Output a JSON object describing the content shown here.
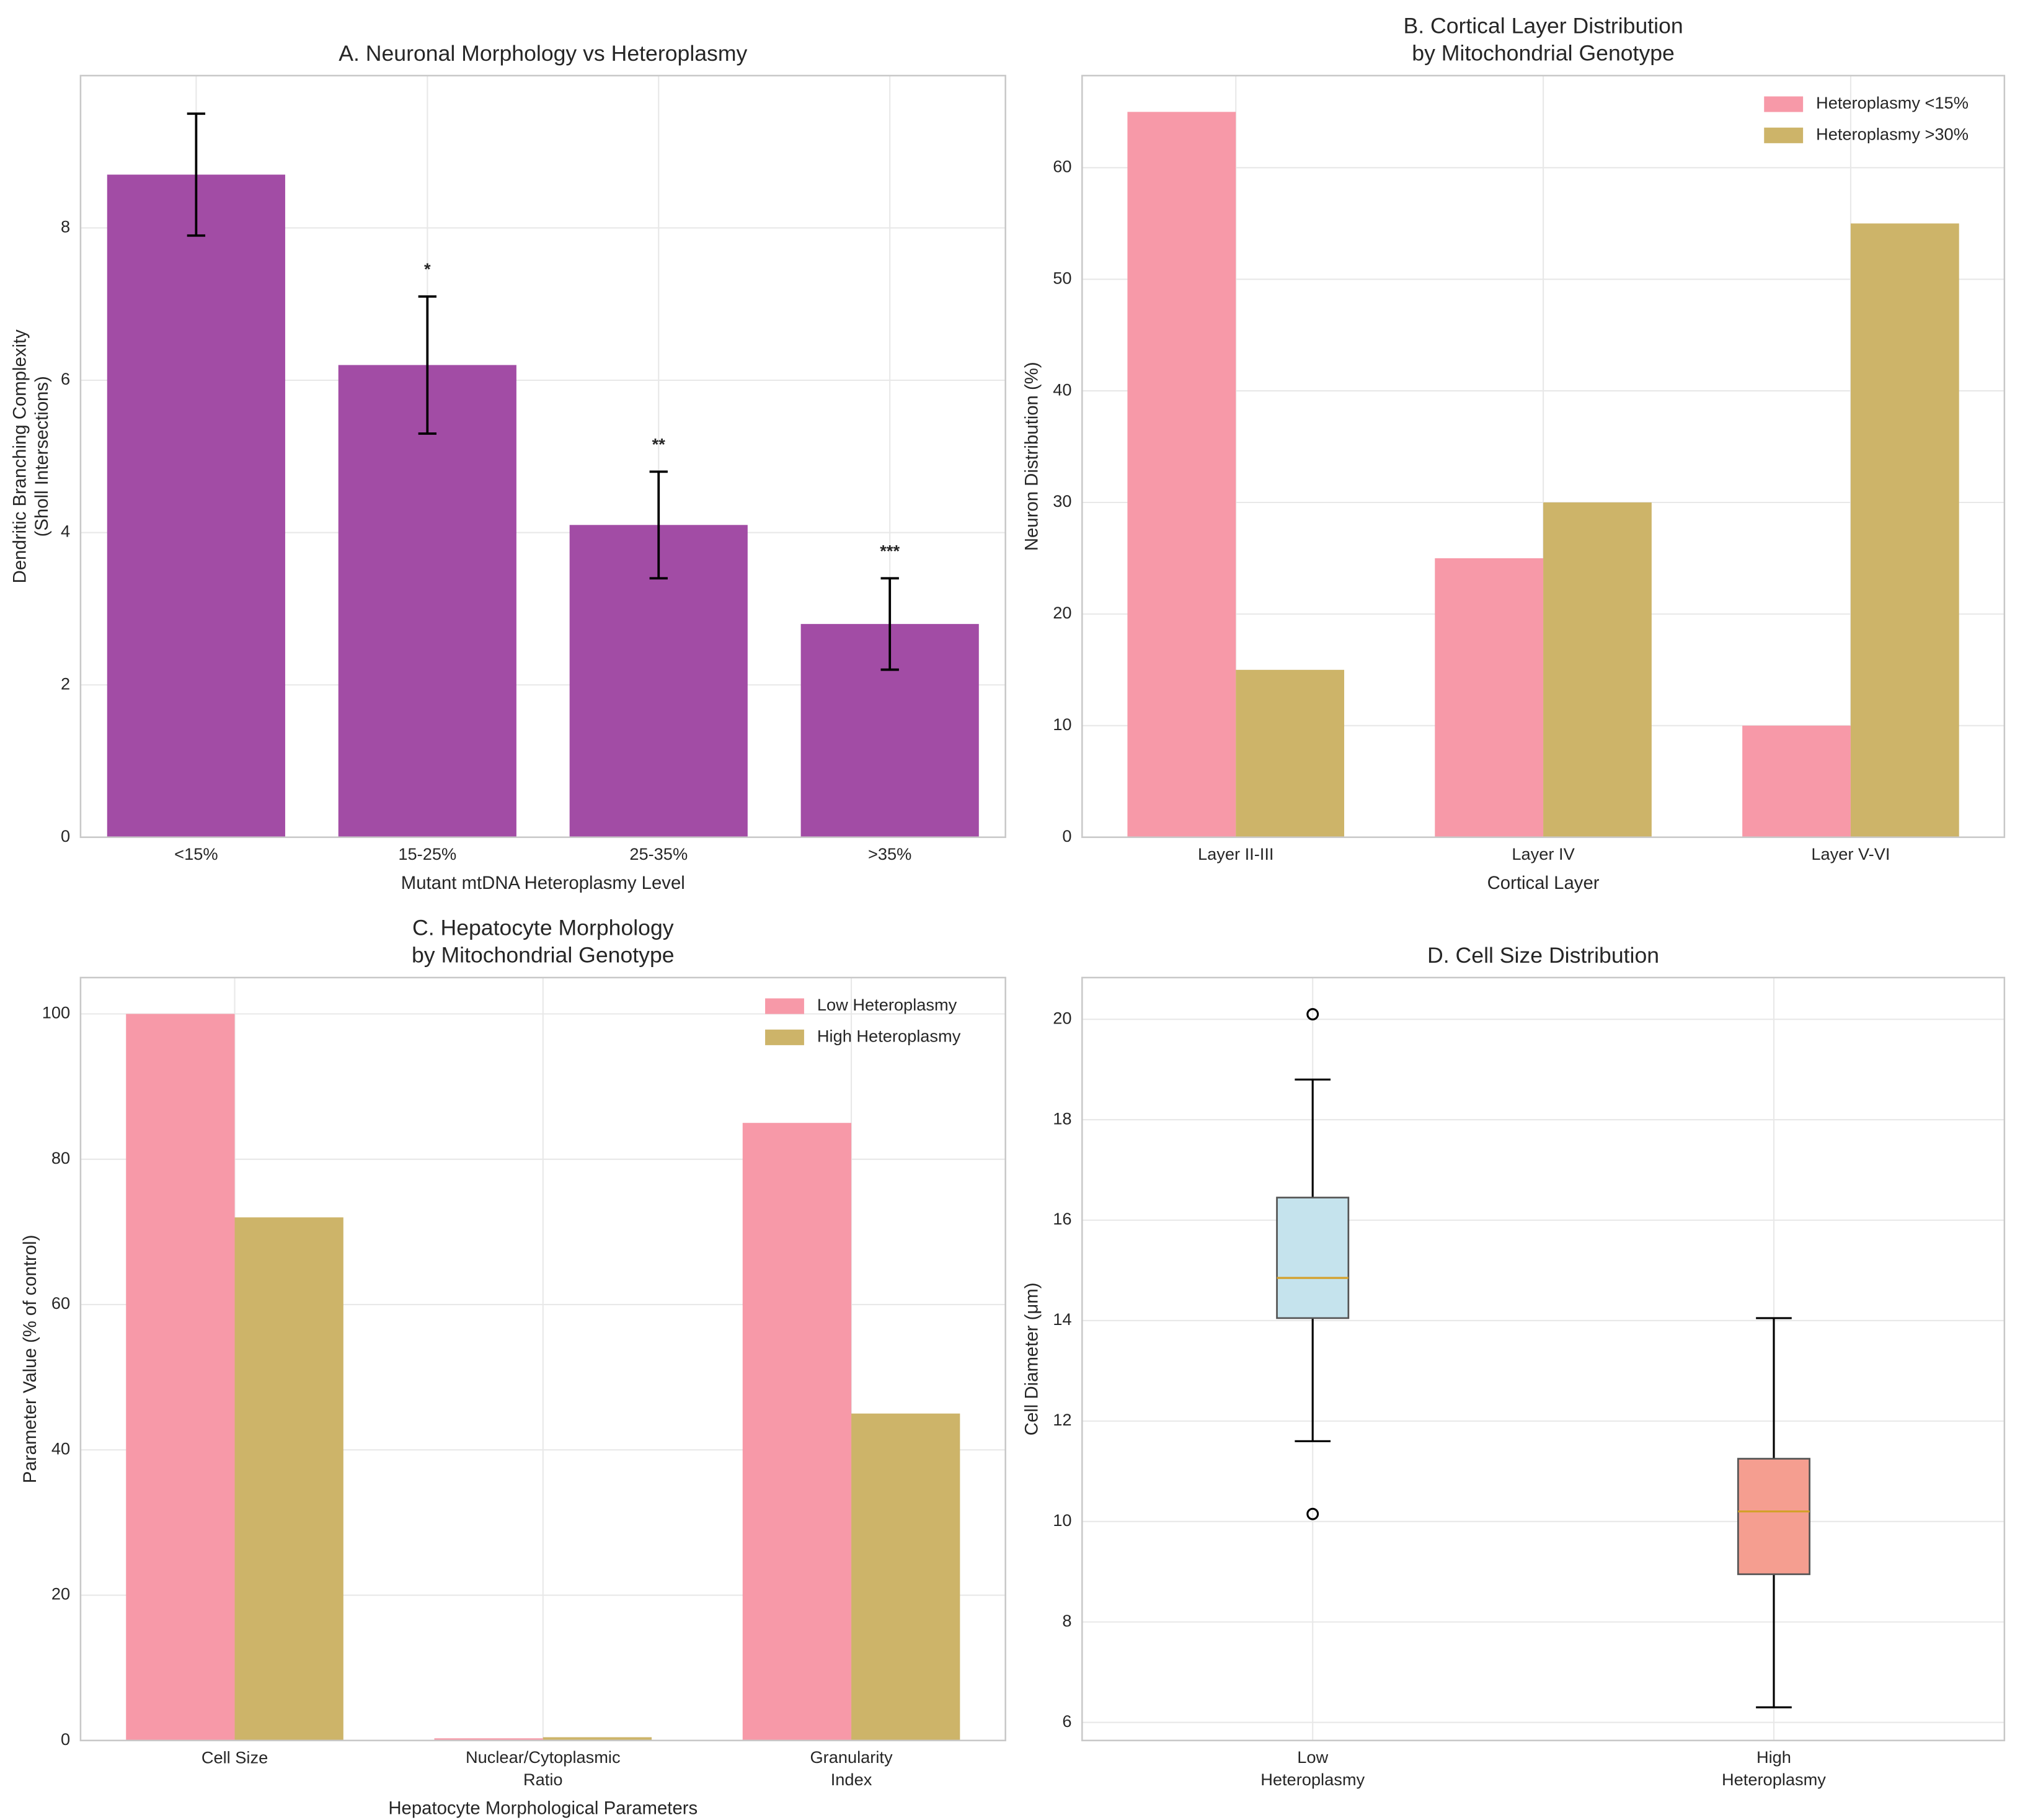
{
  "chart_data": [
    {
      "type": "bar",
      "title": "A. Neuronal Morphology vs Heteroplasmy",
      "xlabel": "Mutant mtDNA Heteroplasmy Level",
      "ylabel": "Dendritic Branching Complexity\n(Sholl Intersections)",
      "categories": [
        "<15%",
        "15-25%",
        "25-35%",
        ">35%"
      ],
      "values": [
        8.7,
        6.2,
        4.1,
        2.8
      ],
      "errors": [
        0.8,
        0.9,
        0.7,
        0.6
      ],
      "significance": [
        null,
        "*",
        "**",
        "***"
      ],
      "color": "#a24ca5",
      "ylim": [
        0,
        10
      ],
      "yticks": [
        0,
        2,
        4,
        6,
        8
      ],
      "grid": true
    },
    {
      "type": "bar",
      "title": "B. Cortical Layer Distribution\nby Mitochondrial Genotype",
      "xlabel": "Cortical Layer",
      "ylabel": "Neuron Distribution (%)",
      "categories": [
        "Layer II-III",
        "Layer IV",
        "Layer V-VI"
      ],
      "series": [
        {
          "name": "Heteroplasmy <15%",
          "color": "#f799a8",
          "values": [
            65,
            25,
            10
          ]
        },
        {
          "name": "Heteroplasmy >30%",
          "color": "#cdb469",
          "values": [
            15,
            30,
            55
          ]
        }
      ],
      "ylim": [
        0,
        68.25
      ],
      "yticks": [
        0,
        10,
        20,
        30,
        40,
        50,
        60
      ],
      "grid": true,
      "legend": "upper right"
    },
    {
      "type": "bar",
      "title": "C. Hepatocyte Morphology\nby Mitochondrial Genotype",
      "xlabel": "Hepatocyte Morphological Parameters",
      "ylabel": "Parameter Value (% of control)",
      "categories": [
        "Cell Size",
        "Nuclear/Cytoplasmic\nRatio",
        "Granularity\nIndex"
      ],
      "series": [
        {
          "name": "Low Heteroplasmy",
          "color": "#f799a8",
          "values": [
            100,
            0.3,
            85
          ]
        },
        {
          "name": "High Heteroplasmy",
          "color": "#cdb469",
          "values": [
            72,
            0.45,
            45
          ]
        }
      ],
      "ylim": [
        0,
        105
      ],
      "yticks": [
        0,
        20,
        40,
        60,
        80,
        100
      ],
      "grid": true,
      "legend": "upper right"
    },
    {
      "type": "box",
      "title": "D. Cell Size Distribution",
      "ylabel": "Cell Diameter (μm)",
      "categories": [
        "Low\nHeteroplasmy",
        "High\nHeteroplasmy"
      ],
      "boxes": [
        {
          "whislo": 11.6,
          "q1": 14.05,
          "med": 14.85,
          "q3": 16.45,
          "whishi": 18.8,
          "fliers": [
            20.1,
            10.15
          ],
          "color": "#c5e3ed"
        },
        {
          "whislo": 6.3,
          "q1": 8.95,
          "med": 10.2,
          "q3": 11.25,
          "whishi": 14.05,
          "fliers": [],
          "color": "#f59e90"
        }
      ],
      "median_color": "#d4a02a",
      "ylim": [
        5.64,
        20.83
      ],
      "yticks": [
        6,
        8,
        10,
        12,
        14,
        16,
        18,
        20
      ],
      "grid": true
    }
  ]
}
